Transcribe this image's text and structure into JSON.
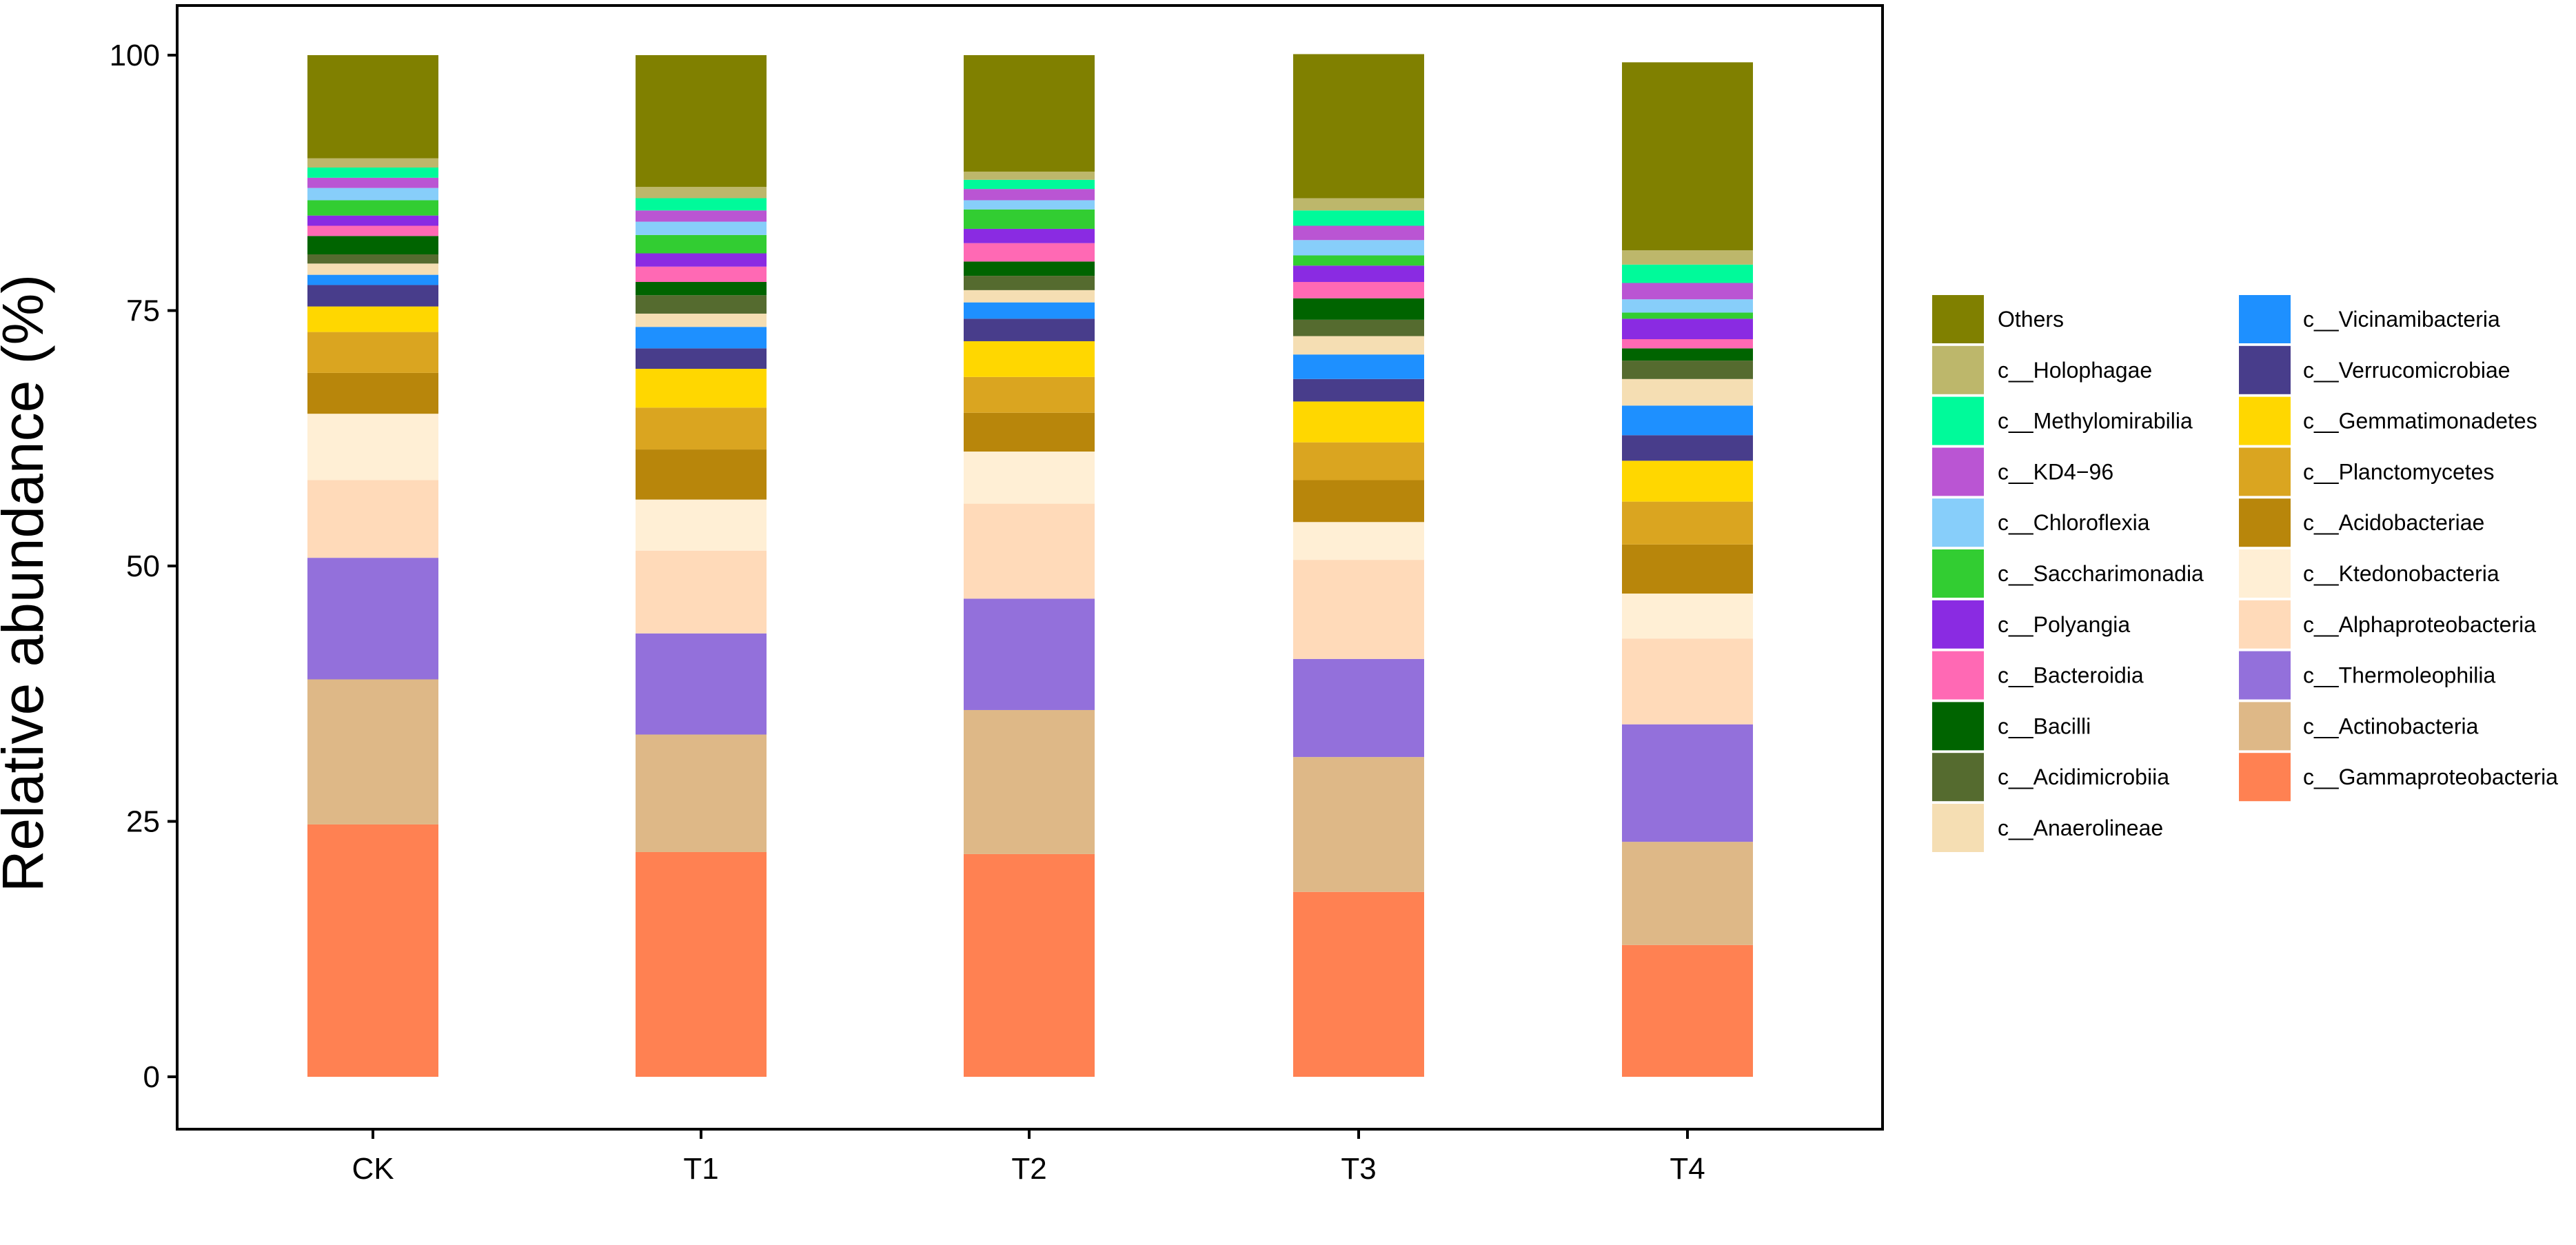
{
  "chart_data": {
    "type": "bar",
    "stacked": true,
    "title": "",
    "xlabel": "",
    "ylabel": "Relative abundance (%)",
    "ylim": [
      0,
      100
    ],
    "yticks": [
      "0",
      "25",
      "50",
      "75",
      "100"
    ],
    "categories": [
      "CK",
      "T1",
      "T2",
      "T3",
      "T4"
    ],
    "grid": false,
    "legend_position": "right",
    "series": [
      {
        "name": "c__Gammaproteobacteria",
        "color": "#FF8152",
        "values": [
          24.7,
          22.0,
          21.8,
          18.1,
          12.9
        ]
      },
      {
        "name": "c__Actinobacteria",
        "color": "#DEB887",
        "values": [
          14.2,
          11.5,
          14.1,
          13.2,
          10.1
        ]
      },
      {
        "name": "c__Thermoleophilia",
        "color": "#9370DB",
        "values": [
          11.9,
          9.9,
          10.9,
          9.6,
          11.5
        ]
      },
      {
        "name": "c__Alphaproteobacteria",
        "color": "#FFDAB9",
        "values": [
          7.6,
          8.1,
          9.3,
          9.7,
          8.4
        ]
      },
      {
        "name": "c__Ktedonobacteria",
        "color": "#FFEFD5",
        "values": [
          6.5,
          5.0,
          5.1,
          3.7,
          4.4
        ]
      },
      {
        "name": "c__Acidobacteriae",
        "color": "#B8860B",
        "values": [
          4.0,
          4.9,
          3.8,
          4.1,
          4.8
        ]
      },
      {
        "name": "c__Planctomycetes",
        "color": "#DAA520",
        "values": [
          4.0,
          4.1,
          3.5,
          3.7,
          4.2
        ]
      },
      {
        "name": "c__Gemmatimonadetes",
        "color": "#FFD700",
        "values": [
          2.5,
          3.8,
          3.5,
          4.0,
          4.0
        ]
      },
      {
        "name": "c__Verrucomicrobiae",
        "color": "#483D8B",
        "values": [
          2.1,
          2.0,
          2.2,
          2.2,
          2.5
        ]
      },
      {
        "name": "c__Vicinamibacteria",
        "color": "#1E90FF",
        "values": [
          1.0,
          2.1,
          1.6,
          2.4,
          2.9
        ]
      },
      {
        "name": "c__Anaerolineae",
        "color": "#F5DEB3",
        "values": [
          1.1,
          1.3,
          1.2,
          1.8,
          2.6
        ]
      },
      {
        "name": "c__Acidimicrobiia",
        "color": "#556B2F",
        "values": [
          0.9,
          1.8,
          1.4,
          1.6,
          1.8
        ]
      },
      {
        "name": "c__Bacilli",
        "color": "#006400",
        "values": [
          1.8,
          1.3,
          1.4,
          2.1,
          1.2
        ]
      },
      {
        "name": "c__Bacteroidia",
        "color": "#FF69B4",
        "values": [
          1.0,
          1.5,
          1.8,
          1.6,
          0.9
        ]
      },
      {
        "name": "c__Polyangia",
        "color": "#8A2BE2",
        "values": [
          1.0,
          1.3,
          1.4,
          1.6,
          2.0
        ]
      },
      {
        "name": "c__Saccharimonadia",
        "color": "#32CD32",
        "values": [
          1.5,
          1.8,
          1.9,
          1.0,
          0.6
        ]
      },
      {
        "name": "c__Chloroflexia",
        "color": "#87CEFA",
        "values": [
          1.2,
          1.3,
          0.9,
          1.5,
          1.3
        ]
      },
      {
        "name": "c__KD4-96",
        "color": "#BA55D3",
        "values": [
          1.0,
          1.1,
          1.1,
          1.4,
          1.6
        ]
      },
      {
        "name": "c__Methylomirabilia",
        "color": "#00FA9A",
        "values": [
          1.0,
          1.2,
          0.9,
          1.5,
          1.8
        ]
      },
      {
        "name": "c__Holophagae",
        "color": "#BDB76B",
        "values": [
          0.9,
          1.1,
          0.8,
          1.2,
          1.4
        ]
      },
      {
        "name": "Others",
        "color": "#808000",
        "values": [
          10.1,
          12.9,
          11.4,
          14.1,
          18.4
        ]
      }
    ],
    "legend": {
      "column1": [
        "Others",
        "c__Holophagae",
        "c__Methylomirabilia",
        "c__KD4−96",
        "c__Chloroflexia",
        "c__Saccharimonadia",
        "c__Polyangia",
        "c__Bacteroidia",
        "c__Bacilli",
        "c__Acidimicrobiia",
        "c__Anaerolineae"
      ],
      "column2": [
        "c__Vicinamibacteria",
        "c__Verrucomicrobiae",
        "c__Gemmatimonadetes",
        "c__Planctomycetes",
        "c__Acidobacteriae",
        "c__Ktedonobacteria",
        "c__Alphaproteobacteria",
        "c__Thermoleophilia",
        "c__Actinobacteria",
        "c__Gammaproteobacteria"
      ]
    }
  }
}
